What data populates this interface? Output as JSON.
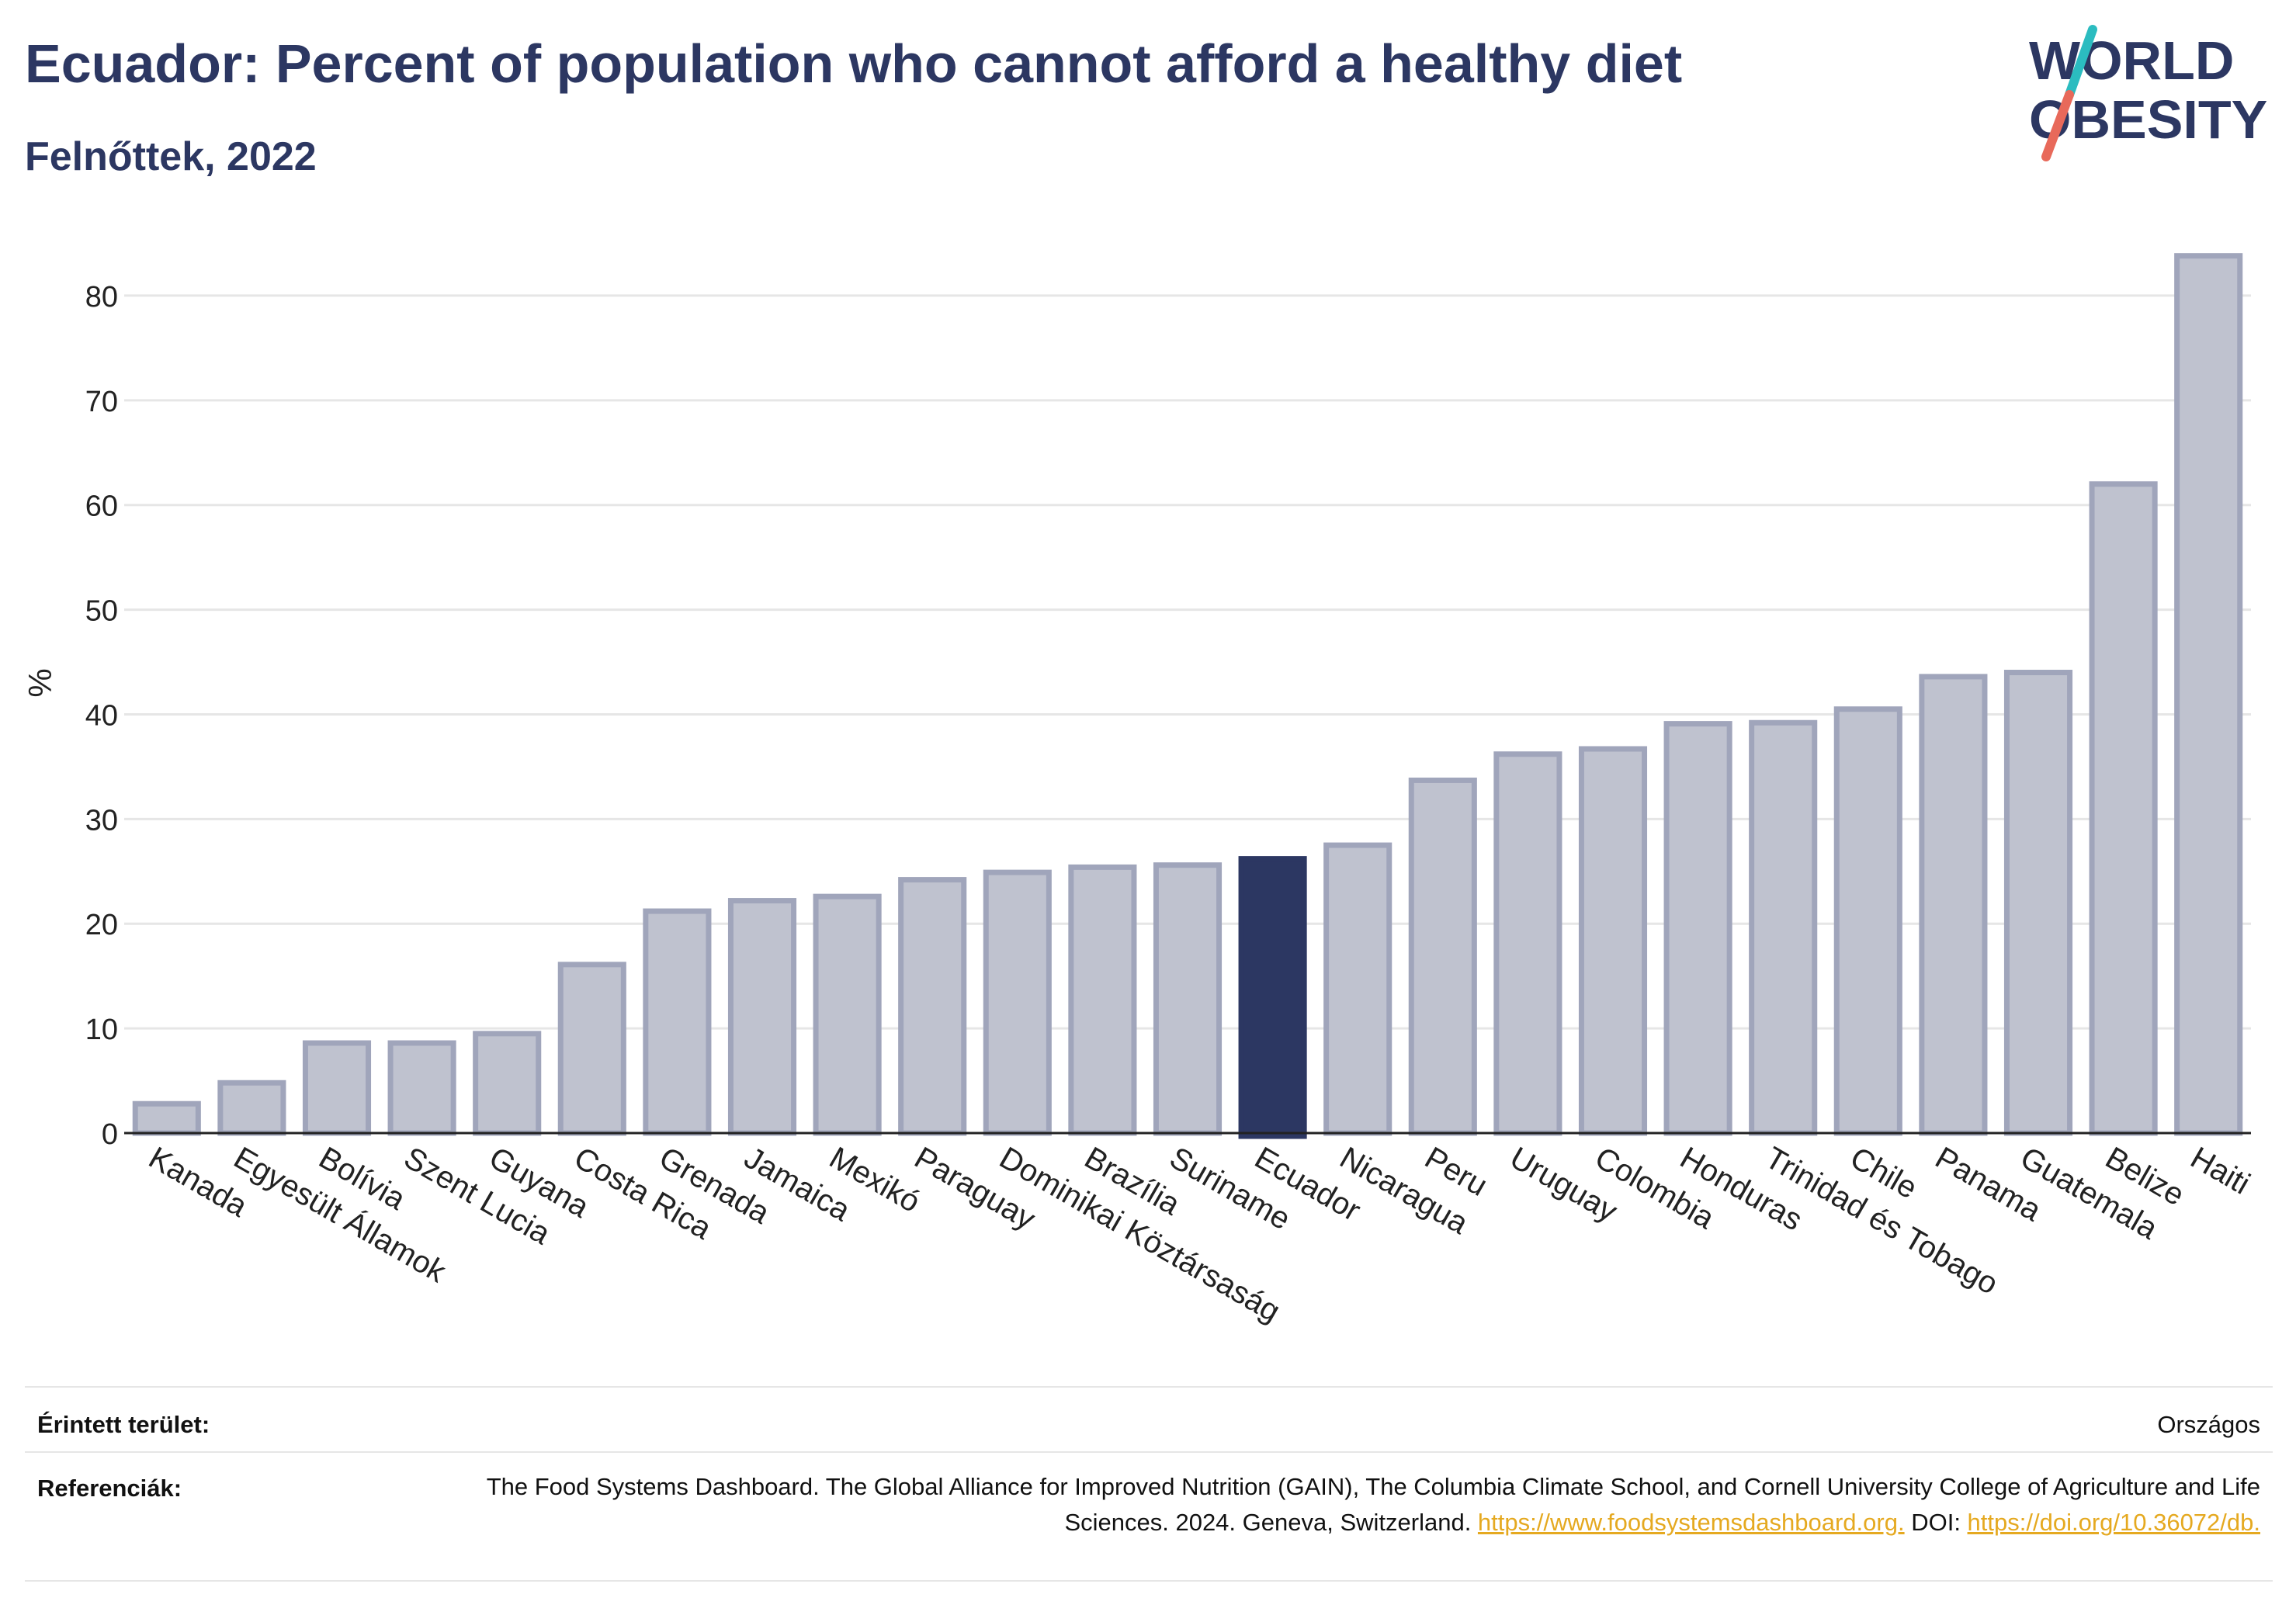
{
  "header": {
    "title": "Ecuador: Percent of population who cannot afford a healthy diet",
    "subtitle": "Felnőttek, 2022"
  },
  "logo": {
    "line1": "WORLD",
    "line2": "OBESITY",
    "slash_colors": [
      "#2bbcc0",
      "#e8695a"
    ]
  },
  "chart_data": {
    "type": "bar",
    "title": "Ecuador: Percent of population who cannot afford a healthy diet",
    "subtitle": "Felnőttek, 2022",
    "xlabel": "",
    "ylabel": "%",
    "ylim": [
      0,
      86
    ],
    "yticks": [
      0,
      10,
      20,
      30,
      40,
      50,
      60,
      70,
      80
    ],
    "grid": true,
    "highlight": "Ecuador",
    "colors": {
      "bar": "#bfc2cf",
      "bar_stroke": "#a0a5bb",
      "highlight": "#2c3762"
    },
    "categories": [
      "Kanada",
      "Egyesült Államok",
      "Bolívia",
      "Szent Lucia",
      "Guyana",
      "Costa Rica",
      "Grenada",
      "Jamaica",
      "Mexikó",
      "Paraguay",
      "Dominikai Köztársaság",
      "Brazília",
      "Suriname",
      "Ecuador",
      "Nicaragua",
      "Peru",
      "Uruguay",
      "Colombia",
      "Honduras",
      "Trinidad és Tobago",
      "Chile",
      "Panama",
      "Guatemala",
      "Belize",
      "Haiti"
    ],
    "values": [
      2.8,
      4.8,
      8.6,
      8.6,
      9.5,
      16.1,
      21.2,
      22.2,
      22.6,
      24.2,
      24.9,
      25.4,
      25.6,
      26.2,
      27.5,
      33.7,
      36.2,
      36.7,
      39.1,
      39.2,
      40.5,
      43.6,
      44.0,
      62.0,
      83.8
    ]
  },
  "footer": {
    "area_label": "Érintett terület:",
    "area_value": "Országos",
    "ref_label": "Referenciák:",
    "ref_text_1": "The Food Systems Dashboard. The Global Alliance for Improved Nutrition (GAIN), The Columbia Climate School, and Cornell University College of Agriculture and Life Sciences. 2024. Geneva, Switzerland. ",
    "ref_link_1": "https://www.foodsystemsdashboard.org.",
    "ref_text_2": " DOI: ",
    "ref_link_2": "https://doi.org/10.36072/db."
  }
}
